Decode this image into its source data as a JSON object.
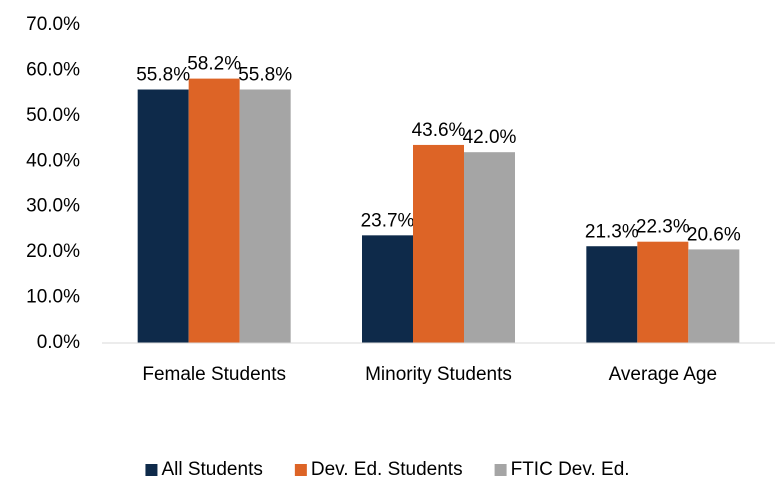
{
  "chart_data": {
    "type": "bar",
    "categories": [
      "Female Students",
      "Minority Students",
      "Average Age"
    ],
    "series": [
      {
        "name": "All Students",
        "color": "#0e2a4a",
        "values": [
          55.8,
          23.7,
          21.3
        ],
        "value_labels": [
          "55.8%",
          "23.7%",
          "21.3%"
        ]
      },
      {
        "name": "Dev. Ed. Students",
        "color": "#dd6426",
        "values": [
          58.2,
          43.6,
          22.3
        ],
        "value_labels": [
          "58.2%",
          "43.6%",
          "22.3%"
        ]
      },
      {
        "name": "FTIC Dev. Ed.",
        "color": "#a5a5a5",
        "values": [
          55.8,
          42.0,
          20.6
        ],
        "value_labels": [
          "55.8%",
          "42.0%",
          "20.6%"
        ]
      }
    ],
    "ylim": [
      0,
      70
    ],
    "yticks": [
      {
        "value": 0,
        "label": "0.0%"
      },
      {
        "value": 10,
        "label": "10.0%"
      },
      {
        "value": 20,
        "label": "20.0%"
      },
      {
        "value": 30,
        "label": "30.0%"
      },
      {
        "value": 40,
        "label": "40.0%"
      },
      {
        "value": 50,
        "label": "50.0%"
      },
      {
        "value": 60,
        "label": "60.0%"
      },
      {
        "value": 70,
        "label": "70.0%"
      }
    ],
    "grid": false,
    "legend": "bottom"
  }
}
